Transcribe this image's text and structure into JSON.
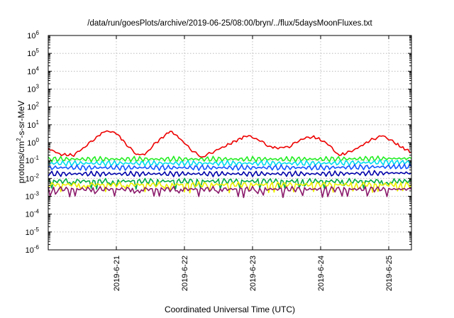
{
  "chart_data": {
    "type": "line",
    "title": "/data/run/goesPlots/archive/2019-06-25/08:00/bryn/../flux/5daysMoonFluxes.txt",
    "xlabel": "Coordinated Universal Time (UTC)",
    "ylabel": {
      "main": "protons/cm",
      "sup": "2",
      "rest": "-s-sr-MeV"
    },
    "y_scale": "log",
    "ylim": [
      1e-06,
      1000000.0
    ],
    "y_ticks": [
      {
        "base": "10",
        "exp": "-6",
        "value": 1e-06
      },
      {
        "base": "10",
        "exp": "-5",
        "value": 1e-05
      },
      {
        "base": "10",
        "exp": "-4",
        "value": 0.0001
      },
      {
        "base": "10",
        "exp": "-3",
        "value": 0.001
      },
      {
        "base": "10",
        "exp": "-2",
        "value": 0.01
      },
      {
        "base": "10",
        "exp": "-1",
        "value": 0.1
      },
      {
        "base": "10",
        "exp": "0",
        "value": 1
      },
      {
        "base": "10",
        "exp": "1",
        "value": 10
      },
      {
        "base": "10",
        "exp": "2",
        "value": 100
      },
      {
        "base": "10",
        "exp": "3",
        "value": 1000
      },
      {
        "base": "10",
        "exp": "4",
        "value": 10000
      },
      {
        "base": "10",
        "exp": "5",
        "value": 100000
      },
      {
        "base": "10",
        "exp": "6",
        "value": 1000000
      }
    ],
    "xlim": [
      "2019-06-20 00:00",
      "2019-06-25 08:00"
    ],
    "x_ticks": [
      "2019-6-21",
      "2019-6-22",
      "2019-6-23",
      "2019-6-24",
      "2019-6-25"
    ],
    "grid": true,
    "legend": "none",
    "series": [
      {
        "color": "#ee0000",
        "points": [
          [
            "2019-06-20 00:00",
            0.5
          ],
          [
            "2019-06-20 04:00",
            0.22
          ],
          [
            "2019-06-20 09:00",
            0.2
          ],
          [
            "2019-06-20 13:00",
            0.6
          ],
          [
            "2019-06-20 17:00",
            2.0
          ],
          [
            "2019-06-20 20:00",
            4.5
          ],
          [
            "2019-06-21 00:00",
            3.5
          ],
          [
            "2019-06-21 03:00",
            1.0
          ],
          [
            "2019-06-21 07:00",
            0.22
          ],
          [
            "2019-06-21 10:00",
            0.22
          ],
          [
            "2019-06-21 14:00",
            1.0
          ],
          [
            "2019-06-21 19:00",
            4.5
          ],
          [
            "2019-06-21 22:00",
            2.0
          ],
          [
            "2019-06-22 02:00",
            0.45
          ],
          [
            "2019-06-22 06:00",
            0.15
          ],
          [
            "2019-06-22 10:00",
            0.3
          ],
          [
            "2019-06-22 14:00",
            0.6
          ],
          [
            "2019-06-22 19:00",
            1.5
          ],
          [
            "2019-06-22 22:00",
            2.5
          ],
          [
            "2019-06-23 02:00",
            1.5
          ],
          [
            "2019-06-23 06:00",
            0.6
          ],
          [
            "2019-06-23 09:00",
            0.5
          ],
          [
            "2019-06-23 13:00",
            0.6
          ],
          [
            "2019-06-23 17:00",
            1.5
          ],
          [
            "2019-06-23 21:00",
            2.2
          ],
          [
            "2019-06-24 00:00",
            1.5
          ],
          [
            "2019-06-24 04:00",
            0.55
          ],
          [
            "2019-06-24 06:00",
            0.2
          ],
          [
            "2019-06-24 09:00",
            0.25
          ],
          [
            "2019-06-24 13:00",
            0.5
          ],
          [
            "2019-06-24 18:00",
            1.5
          ],
          [
            "2019-06-24 22:00",
            2.5
          ],
          [
            "2019-06-25 02:00",
            1.0
          ],
          [
            "2019-06-25 05:00",
            0.5
          ],
          [
            "2019-06-25 08:00",
            0.3
          ]
        ]
      },
      {
        "color": "#22ee22",
        "points": [
          [
            "2019-06-20 00:00",
            0.12
          ],
          [
            "2019-06-21 00:00",
            0.12
          ],
          [
            "2019-06-22 00:00",
            0.12
          ],
          [
            "2019-06-23 00:00",
            0.12
          ],
          [
            "2019-06-24 00:00",
            0.12
          ],
          [
            "2019-06-25 00:00",
            0.13
          ],
          [
            "2019-06-25 08:00",
            0.13
          ]
        ]
      },
      {
        "color": "#00ddee",
        "points": [
          [
            "2019-06-20 00:00",
            0.07
          ],
          [
            "2019-06-21 00:00",
            0.07
          ],
          [
            "2019-06-22 00:00",
            0.07
          ],
          [
            "2019-06-23 00:00",
            0.07
          ],
          [
            "2019-06-24 00:00",
            0.07
          ],
          [
            "2019-06-25 00:00",
            0.08
          ],
          [
            "2019-06-25 08:00",
            0.08
          ]
        ]
      },
      {
        "color": "#1155ff",
        "points": [
          [
            "2019-06-20 00:00",
            0.04
          ],
          [
            "2019-06-21 00:00",
            0.04
          ],
          [
            "2019-06-22 00:00",
            0.04
          ],
          [
            "2019-06-23 00:00",
            0.04
          ],
          [
            "2019-06-24 00:00",
            0.04
          ],
          [
            "2019-06-25 00:00",
            0.045
          ],
          [
            "2019-06-25 08:00",
            0.045
          ]
        ]
      },
      {
        "color": "#0000aa",
        "points": [
          [
            "2019-06-20 00:00",
            0.018
          ],
          [
            "2019-06-21 00:00",
            0.018
          ],
          [
            "2019-06-22 00:00",
            0.018
          ],
          [
            "2019-06-23 00:00",
            0.018
          ],
          [
            "2019-06-24 00:00",
            0.018
          ],
          [
            "2019-06-25 00:00",
            0.02
          ],
          [
            "2019-06-25 08:00",
            0.02
          ]
        ]
      },
      {
        "color": "#00aa44",
        "points": [
          [
            "2019-06-20 00:00",
            0.007
          ],
          [
            "2019-06-21 00:00",
            0.007
          ],
          [
            "2019-06-22 00:00",
            0.007
          ],
          [
            "2019-06-23 00:00",
            0.007
          ],
          [
            "2019-06-24 00:00",
            0.007
          ],
          [
            "2019-06-25 00:00",
            0.007
          ],
          [
            "2019-06-25 08:00",
            0.007
          ]
        ]
      },
      {
        "color": "#eeee00",
        "points": [
          [
            "2019-06-20 00:00",
            0.0045
          ],
          [
            "2019-06-21 00:00",
            0.0045
          ],
          [
            "2019-06-22 00:00",
            0.0045
          ],
          [
            "2019-06-23 00:00",
            0.0045
          ],
          [
            "2019-06-24 00:00",
            0.0045
          ],
          [
            "2019-06-25 00:00",
            0.0045
          ],
          [
            "2019-06-25 08:00",
            0.0045
          ]
        ]
      },
      {
        "color": "#8b1a6b",
        "points": [
          [
            "2019-06-20 00:00",
            0.0025
          ],
          [
            "2019-06-21 00:00",
            0.0025
          ],
          [
            "2019-06-22 00:00",
            0.0025
          ],
          [
            "2019-06-23 00:00",
            0.0025
          ],
          [
            "2019-06-24 00:00",
            0.0025
          ],
          [
            "2019-06-25 00:00",
            0.0025
          ],
          [
            "2019-06-25 08:00",
            0.0025
          ]
        ]
      }
    ]
  }
}
